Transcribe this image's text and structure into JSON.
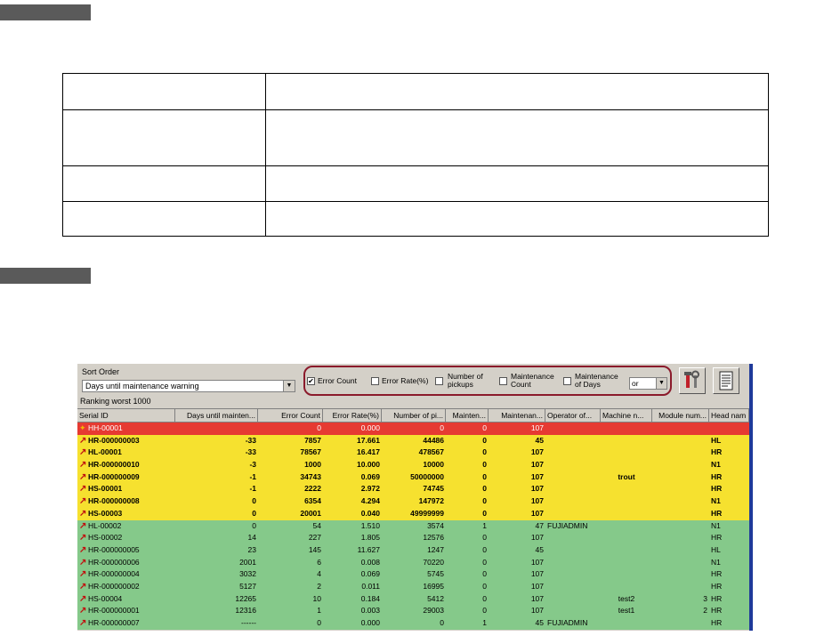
{
  "panel": {
    "sort_order_label": "Sort Order",
    "sort_order_value": "Days until maintenance warning",
    "filters": {
      "error_count": {
        "label": "Error Count",
        "checked": true
      },
      "error_rate": {
        "label": "Error Rate(%)",
        "checked": false
      },
      "pickups_1": "Number of",
      "pickups_2": "pickups",
      "maint_count_1": "Maintenance",
      "maint_count_2": "Count",
      "maint_days_1": "Maintenance",
      "maint_days_2": "of Days",
      "logic": "or"
    },
    "ranking": "Ranking worst 1000"
  },
  "grid": {
    "columns": [
      "Serial ID",
      "Days until mainten...",
      "Error Count",
      "Error Rate(%)",
      "Number of pi...",
      "Mainten...",
      "Maintenan...",
      "Operator of...",
      "Machine n...",
      "Module num...",
      "Head nam"
    ],
    "rows": [
      {
        "status": "red",
        "icon": "star",
        "serial": "HH-00001",
        "days": "",
        "err": "0",
        "rate": "0.000",
        "pick": "0",
        "mcount": "0",
        "mdays": "107",
        "operator": "",
        "machine": "",
        "module": "",
        "head": ""
      },
      {
        "status": "yellow",
        "icon": "arrow",
        "serial": "HR-000000003",
        "days": "-33",
        "err": "7857",
        "rate": "17.661",
        "pick": "44486",
        "mcount": "0",
        "mdays": "45",
        "operator": "",
        "machine": "",
        "module": "",
        "head": "HL"
      },
      {
        "status": "yellow",
        "icon": "arrow",
        "serial": "HL-00001",
        "days": "-33",
        "err": "78567",
        "rate": "16.417",
        "pick": "478567",
        "mcount": "0",
        "mdays": "107",
        "operator": "",
        "machine": "",
        "module": "",
        "head": "HR"
      },
      {
        "status": "yellow",
        "icon": "arrow",
        "serial": "HR-000000010",
        "days": "-3",
        "err": "1000",
        "rate": "10.000",
        "pick": "10000",
        "mcount": "0",
        "mdays": "107",
        "operator": "",
        "machine": "",
        "module": "",
        "head": "N1"
      },
      {
        "status": "yellow",
        "icon": "arrow",
        "serial": "HR-000000009",
        "days": "-1",
        "err": "34743",
        "rate": "0.069",
        "pick": "50000000",
        "mcount": "0",
        "mdays": "107",
        "operator": "",
        "machine": "trout",
        "module": "",
        "head": "HR"
      },
      {
        "status": "yellow",
        "icon": "arrow",
        "serial": "HS-00001",
        "days": "-1",
        "err": "2222",
        "rate": "2.972",
        "pick": "74745",
        "mcount": "0",
        "mdays": "107",
        "operator": "",
        "machine": "",
        "module": "",
        "head": "HR"
      },
      {
        "status": "yellow",
        "icon": "arrow",
        "serial": "HR-000000008",
        "days": "0",
        "err": "6354",
        "rate": "4.294",
        "pick": "147972",
        "mcount": "0",
        "mdays": "107",
        "operator": "",
        "machine": "",
        "module": "",
        "head": "N1"
      },
      {
        "status": "yellow",
        "icon": "arrow",
        "serial": "HS-00003",
        "days": "0",
        "err": "20001",
        "rate": "0.040",
        "pick": "49999999",
        "mcount": "0",
        "mdays": "107",
        "operator": "",
        "machine": "",
        "module": "",
        "head": "HR"
      },
      {
        "status": "green",
        "icon": "arrow",
        "serial": "HL-00002",
        "days": "0",
        "err": "54",
        "rate": "1.510",
        "pick": "3574",
        "mcount": "1",
        "mdays": "47",
        "operator": "FUJIADMIN",
        "machine": "",
        "module": "",
        "head": "N1"
      },
      {
        "status": "green",
        "icon": "arrow",
        "serial": "HS-00002",
        "days": "14",
        "err": "227",
        "rate": "1.805",
        "pick": "12576",
        "mcount": "0",
        "mdays": "107",
        "operator": "",
        "machine": "",
        "module": "",
        "head": "HR"
      },
      {
        "status": "green",
        "icon": "arrow",
        "serial": "HR-000000005",
        "days": "23",
        "err": "145",
        "rate": "11.627",
        "pick": "1247",
        "mcount": "0",
        "mdays": "45",
        "operator": "",
        "machine": "",
        "module": "",
        "head": "HL"
      },
      {
        "status": "green",
        "icon": "arrow",
        "serial": "HR-000000006",
        "days": "2001",
        "err": "6",
        "rate": "0.008",
        "pick": "70220",
        "mcount": "0",
        "mdays": "107",
        "operator": "",
        "machine": "",
        "module": "",
        "head": "N1"
      },
      {
        "status": "green",
        "icon": "arrow",
        "serial": "HR-000000004",
        "days": "3032",
        "err": "4",
        "rate": "0.069",
        "pick": "5745",
        "mcount": "0",
        "mdays": "107",
        "operator": "",
        "machine": "",
        "module": "",
        "head": "HR"
      },
      {
        "status": "green",
        "icon": "arrow",
        "serial": "HR-000000002",
        "days": "5127",
        "err": "2",
        "rate": "0.011",
        "pick": "16995",
        "mcount": "0",
        "mdays": "107",
        "operator": "",
        "machine": "",
        "module": "",
        "head": "HR"
      },
      {
        "status": "green",
        "icon": "arrow",
        "serial": "HS-00004",
        "days": "12265",
        "err": "10",
        "rate": "0.184",
        "pick": "5412",
        "mcount": "0",
        "mdays": "107",
        "operator": "",
        "machine": "test2",
        "module": "3",
        "head": "HR"
      },
      {
        "status": "green",
        "icon": "arrow",
        "serial": "HR-000000001",
        "days": "12316",
        "err": "1",
        "rate": "0.003",
        "pick": "29003",
        "mcount": "0",
        "mdays": "107",
        "operator": "",
        "machine": "test1",
        "module": "2",
        "head": "HR"
      },
      {
        "status": "green",
        "icon": "arrow",
        "serial": "HR-000000007",
        "days": "------",
        "err": "0",
        "rate": "0.000",
        "pick": "0",
        "mcount": "1",
        "mdays": "45",
        "operator": "FUJIADMIN",
        "machine": "",
        "module": "",
        "head": "HR"
      }
    ]
  },
  "colors": {
    "red": "#e63a32",
    "yellow": "#f6e12f",
    "green": "#85c98a",
    "accent": "#8b1a2b"
  }
}
